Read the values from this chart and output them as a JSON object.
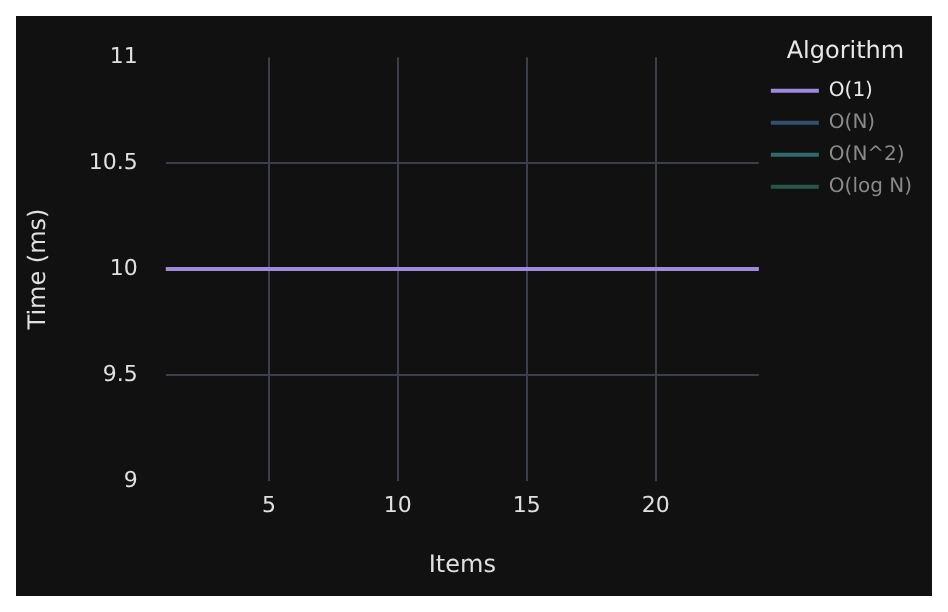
{
  "chart_data": {
    "type": "line",
    "xlabel": "Items",
    "ylabel": "Time (ms)",
    "legend_title": "Algorithm",
    "x": [
      1,
      24
    ],
    "series": [
      {
        "name": "O(1)",
        "color": "#a08ae0",
        "values": [
          10,
          10
        ]
      },
      {
        "name": "O(N)",
        "color": "#34506e",
        "values": [
          null,
          null
        ]
      },
      {
        "name": "O(N^2)",
        "color": "#2f6a68",
        "values": [
          null,
          null
        ]
      },
      {
        "name": "O(log N)",
        "color": "#25584a",
        "values": [
          null,
          null
        ]
      }
    ],
    "xlim": [
      1,
      24
    ],
    "xticks": [
      5,
      10,
      15,
      20
    ],
    "ylim": [
      9,
      11
    ],
    "yticks": [
      9,
      9.5,
      10,
      10.5,
      11
    ],
    "grid": true,
    "legend": "right",
    "marker": "none",
    "line_style": "solid"
  }
}
